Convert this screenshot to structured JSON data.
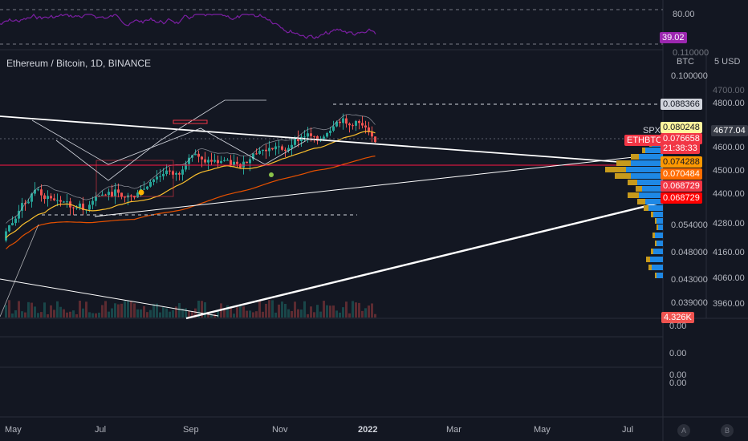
{
  "symbol_title": "Ethereum / Bitcoin, 1D, BINANCE",
  "rsi_axis": {
    "level_80": "80.00",
    "current_value": "39.02"
  },
  "price_axis": {
    "unit_label": "BTC",
    "top_partial": "0.110000",
    "labels": [
      "0.100000",
      "0.054000",
      "0.048000",
      "0.043000",
      "0.039000"
    ],
    "tags": [
      {
        "name": "price-tag-0088366",
        "text": "0.088366",
        "bg": "#d1d4dc",
        "fg": "#131722"
      },
      {
        "name": "price-tag-0080248",
        "text": "0.080248",
        "bg": "#fff59d",
        "fg": "#131722"
      },
      {
        "name": "price-tag-0076658",
        "text": "0.076658",
        "bg": "#f23645",
        "fg": "#ffffff"
      },
      {
        "name": "countdown-tag",
        "text": "21:38:33",
        "bg": "#f23645",
        "fg": "#ffffff"
      },
      {
        "name": "price-tag-0074288",
        "text": "0.074288",
        "bg": "#ff9800",
        "fg": "#131722"
      },
      {
        "name": "price-tag-0070484",
        "text": "0.070484",
        "bg": "#ff6d00",
        "fg": "#ffffff"
      },
      {
        "name": "price-tag-0068729-a",
        "text": "0.068729",
        "bg": "#f23645",
        "fg": "#ffffff"
      },
      {
        "name": "price-tag-0068729-b",
        "text": "0.068729",
        "bg": "#ff0000",
        "fg": "#ffffff"
      }
    ]
  },
  "spx_axis": {
    "unit_label": "5 USD",
    "labels": [
      "4800.00",
      "4600.00",
      "4500.00",
      "4400.00",
      "4280.00",
      "4160.00",
      "4060.00",
      "3960.00"
    ],
    "current_tag": "4677.04",
    "partial_top": "4700.00"
  },
  "legend": {
    "spx": "SPX",
    "ethbtc": "ETHBTC"
  },
  "volume_axis": {
    "tag": "4.326K"
  },
  "lower_pane_axis": [
    "0.00",
    "0.00",
    "0.00",
    "0.00"
  ],
  "time_axis": [
    "May",
    "Jul",
    "Sep",
    "Nov",
    "2022",
    "Mar",
    "May",
    "Jul"
  ],
  "bottom_buttons": {
    "auto": "A",
    "log": "B"
  },
  "colors": {
    "background": "#131722",
    "candle_up": "#26a69a",
    "candle_down": "#ef5350",
    "rsi_line": "#7b1fa2",
    "trendline": "#ffffff",
    "horizontal_level": "#ff1744",
    "ma_short": "#fbc02d",
    "ma_long": "#e65100",
    "volume_profile_up": "#1e88e5",
    "volume_profile_down": "#c79a1c"
  }
}
